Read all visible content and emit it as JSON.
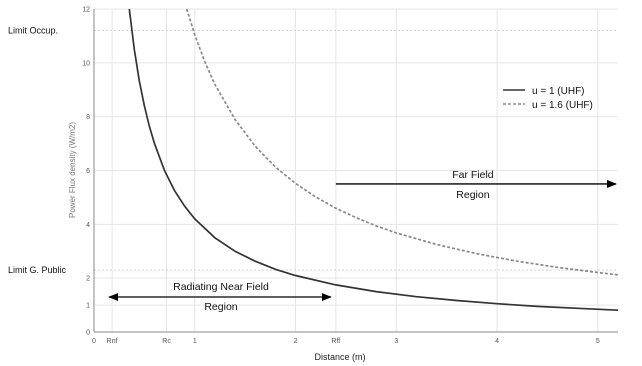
{
  "chart_data": {
    "type": "line",
    "xlabel": "Distance (m)",
    "ylabel": "Power Flux density (W/m2)",
    "xlim": [
      0,
      5.2
    ],
    "ylim": [
      0,
      12
    ],
    "x_ticks": [
      {
        "value": 0,
        "label": "0"
      },
      {
        "value": 0.18,
        "label": "Rnf"
      },
      {
        "value": 0.72,
        "label": "Rc"
      },
      {
        "value": 1,
        "label": "1"
      },
      {
        "value": 2,
        "label": "2"
      },
      {
        "value": 2.4,
        "label": "Rff"
      },
      {
        "value": 3,
        "label": "3"
      },
      {
        "value": 4,
        "label": "4"
      },
      {
        "value": 5,
        "label": "5"
      }
    ],
    "y_ticks": [
      {
        "value": 0,
        "label": "0"
      },
      {
        "value": 1,
        "label": "1"
      },
      {
        "value": 2,
        "label": "2"
      },
      {
        "value": 4,
        "label": "4"
      },
      {
        "value": 6,
        "label": "6"
      },
      {
        "value": 8,
        "label": "8"
      },
      {
        "value": 10,
        "label": "10"
      },
      {
        "value": 12,
        "label": "12"
      }
    ],
    "series": [
      {
        "name": "u = 1 (UHF)",
        "style": "solid",
        "color": "#333333",
        "x": [
          0.35,
          0.4,
          0.45,
          0.5,
          0.55,
          0.6,
          0.7,
          0.8,
          0.9,
          1.0,
          1.2,
          1.4,
          1.6,
          1.8,
          2.0,
          2.4,
          2.8,
          3.2,
          3.6,
          4.0,
          4.4,
          4.8,
          5.2
        ],
        "values": [
          12.0,
          10.5,
          9.33,
          8.4,
          7.64,
          7.0,
          6.0,
          5.25,
          4.67,
          4.2,
          3.5,
          3.0,
          2.63,
          2.33,
          2.1,
          1.75,
          1.5,
          1.31,
          1.17,
          1.05,
          0.95,
          0.88,
          0.81
        ]
      },
      {
        "name": "u = 1.6 (UHF)",
        "style": "dashed",
        "color": "#888888",
        "x": [
          0.92,
          1.0,
          1.1,
          1.2,
          1.4,
          1.6,
          1.8,
          2.0,
          2.2,
          2.4,
          2.6,
          2.8,
          3.0,
          3.4,
          3.8,
          4.2,
          4.6,
          5.0,
          5.2
        ],
        "values": [
          12.0,
          11.04,
          10.04,
          9.2,
          7.89,
          6.9,
          6.13,
          5.52,
          5.02,
          4.6,
          4.25,
          3.94,
          3.68,
          3.25,
          2.91,
          2.63,
          2.4,
          2.21,
          2.12
        ]
      }
    ],
    "reference_lines": [
      {
        "label": "Limit Occup.",
        "value": 11.2
      },
      {
        "label": "Limit G. Public",
        "value": 2.3
      }
    ],
    "annotations": {
      "far_field": {
        "line1": "Far Field",
        "line2": "Region",
        "x_from": 2.4,
        "x_to": 5.2,
        "y": 5.5
      },
      "near_field": {
        "line1": "Radiating Near Field",
        "line2": "Region",
        "x_from": 0.18,
        "x_to": 2.4,
        "y": 1.3
      }
    },
    "legend_position": "top-right",
    "grid": true
  }
}
